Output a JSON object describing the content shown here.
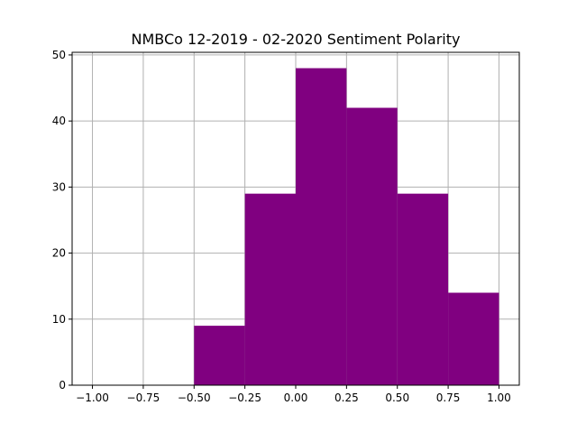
{
  "chart_data": {
    "type": "bar",
    "title": "NMBCo 12-2019 - 02-2020 Sentiment Polarity",
    "xlabel": "",
    "ylabel": "",
    "xlim": [
      -1.1,
      1.1
    ],
    "ylim": [
      0,
      50.4
    ],
    "grid": true,
    "bar_color": "#800080",
    "bins": [
      {
        "start": -0.5,
        "end": -0.25,
        "count": 9
      },
      {
        "start": -0.25,
        "end": 0.0,
        "count": 29
      },
      {
        "start": 0.0,
        "end": 0.25,
        "count": 48
      },
      {
        "start": 0.25,
        "end": 0.5,
        "count": 42
      },
      {
        "start": 0.5,
        "end": 0.75,
        "count": 29
      },
      {
        "start": 0.75,
        "end": 1.0,
        "count": 14
      }
    ],
    "x_ticks": [
      {
        "value": -1.0,
        "label": "−1.00"
      },
      {
        "value": -0.75,
        "label": "−0.75"
      },
      {
        "value": -0.5,
        "label": "−0.50"
      },
      {
        "value": -0.25,
        "label": "−0.25"
      },
      {
        "value": 0.0,
        "label": "0.00"
      },
      {
        "value": 0.25,
        "label": "0.25"
      },
      {
        "value": 0.5,
        "label": "0.50"
      },
      {
        "value": 0.75,
        "label": "0.75"
      },
      {
        "value": 1.0,
        "label": "1.00"
      }
    ],
    "y_ticks": [
      {
        "value": 0,
        "label": "0"
      },
      {
        "value": 10,
        "label": "10"
      },
      {
        "value": 20,
        "label": "20"
      },
      {
        "value": 30,
        "label": "30"
      },
      {
        "value": 40,
        "label": "40"
      },
      {
        "value": 50,
        "label": "50"
      }
    ]
  }
}
